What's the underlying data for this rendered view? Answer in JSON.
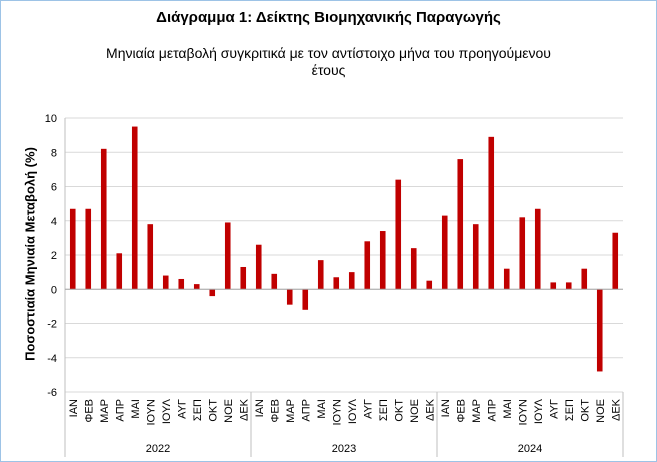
{
  "chart_data": {
    "type": "bar",
    "title": "Διάγραμμα 1: Δείκτης Βιομηχανικής Παραγωγής",
    "subtitle": "Μηνιαία μεταβολή συγκριτικά με τον αντίστοιχο μήνα του προηγούμενου έτους",
    "xlabel": "",
    "ylabel": "Ποσοστιαία Μηνιαία Μεταβολή (%)",
    "ylim": [
      -6,
      10
    ],
    "yticks": [
      -6,
      -4,
      -2,
      0,
      2,
      4,
      6,
      8,
      10
    ],
    "grid": true,
    "bar_color": "#c00000",
    "groups": [
      {
        "label": "2022",
        "categories": [
          "ΙΑΝ",
          "ΦΕΒ",
          "ΜΑΡ",
          "ΑΠΡ",
          "ΜΑΙ",
          "ΙΟΥΝ",
          "ΙΟΥΛ",
          "ΑΥΓ",
          "ΣΕΠ",
          "ΟΚΤ",
          "ΝΟΕ",
          "ΔΕΚ"
        ],
        "values": [
          4.7,
          4.7,
          8.2,
          2.1,
          9.5,
          3.8,
          0.8,
          0.6,
          0.3,
          -0.4,
          3.9,
          1.3
        ]
      },
      {
        "label": "2023",
        "categories": [
          "ΙΑΝ",
          "ΦΕΒ",
          "ΜΑΡ",
          "ΑΠΡ",
          "ΜΑΙ",
          "ΙΟΥΝ",
          "ΙΟΥΛ",
          "ΑΥΓ",
          "ΣΕΠ",
          "ΟΚΤ",
          "ΝΟΕ",
          "ΔΕΚ"
        ],
        "values": [
          2.6,
          0.9,
          -0.9,
          -1.2,
          1.7,
          0.7,
          1.0,
          2.8,
          3.4,
          6.4,
          2.4,
          0.5
        ]
      },
      {
        "label": "2024",
        "categories": [
          "ΙΑΝ",
          "ΦΕΒ",
          "ΜΑΡ",
          "ΑΠΡ",
          "ΜΑΙ",
          "ΙΟΥΝ",
          "ΙΟΥΛ",
          "ΑΥΓ",
          "ΣΕΠ",
          "ΟΚΤ",
          "ΝΟΕ",
          "ΔΕΚ"
        ],
        "values": [
          4.3,
          7.6,
          3.8,
          8.9,
          1.2,
          4.2,
          4.7,
          0.4,
          0.4,
          1.2,
          -4.8,
          3.3
        ]
      }
    ]
  }
}
